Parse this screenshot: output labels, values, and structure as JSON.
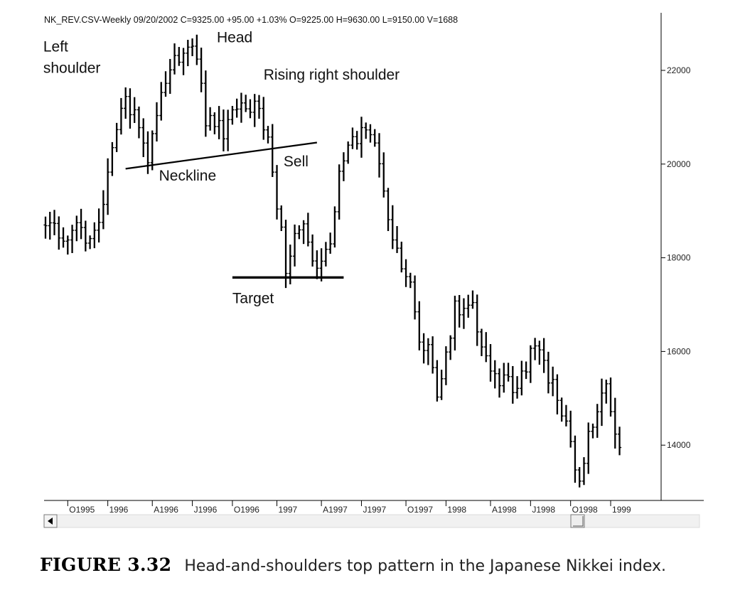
{
  "header": "NK_REV.CSV-Weekly  09/20/2002  C=9325.00  +95.00  +1.03%  O=9225.00  H=9630.00  L=9150.00  V=1688",
  "caption": {
    "number": "FIGURE 3.32",
    "text": "Head-and-shoulders top pattern in the Japanese Nikkei index."
  },
  "chart_data": {
    "type": "bar",
    "subtype": "ohlc-weekly",
    "title": "",
    "xlabel": "",
    "ylabel": "",
    "ylim": [
      12850,
      23000
    ],
    "y_ticks": [
      14000,
      16000,
      18000,
      20000,
      22000
    ],
    "y_axis_side": "right",
    "grid": false,
    "x_ticks": [
      {
        "label": "O1995",
        "week": 5
      },
      {
        "label": "1996",
        "week": 14
      },
      {
        "label": "A1996",
        "week": 24
      },
      {
        "label": "J1996",
        "week": 33
      },
      {
        "label": "O1996",
        "week": 42
      },
      {
        "label": "1997",
        "week": 52
      },
      {
        "label": "A1997",
        "week": 62
      },
      {
        "label": "J1997",
        "week": 71
      },
      {
        "label": "O1997",
        "week": 81
      },
      {
        "label": "1998",
        "week": 90
      },
      {
        "label": "A1998",
        "week": 100
      },
      {
        "label": "J1998",
        "week": 109
      },
      {
        "label": "O1998",
        "week": 118
      },
      {
        "label": "1999",
        "week": 127
      }
    ],
    "series": [
      {
        "close_path": [
          [
            0,
            18700
          ],
          [
            4,
            18500
          ],
          [
            8,
            18600
          ],
          [
            10,
            18400
          ],
          [
            12,
            18700
          ],
          [
            14,
            19900
          ],
          [
            16,
            20600
          ],
          [
            18,
            21400
          ],
          [
            20,
            21000
          ],
          [
            22,
            20600
          ],
          [
            23,
            20100
          ],
          [
            25,
            21200
          ],
          [
            27,
            21900
          ],
          [
            29,
            22300
          ],
          [
            31,
            22200
          ],
          [
            33,
            22500
          ],
          [
            34,
            22300
          ],
          [
            36,
            21000
          ],
          [
            38,
            20900
          ],
          [
            40,
            20600
          ],
          [
            42,
            21100
          ],
          [
            44,
            21300
          ],
          [
            46,
            21200
          ],
          [
            48,
            21300
          ],
          [
            50,
            20500
          ],
          [
            51,
            19800
          ],
          [
            53,
            18600
          ],
          [
            54,
            17600
          ],
          [
            56,
            18400
          ],
          [
            58,
            18600
          ],
          [
            60,
            18100
          ],
          [
            62,
            17800
          ],
          [
            64,
            18300
          ],
          [
            66,
            19900
          ],
          [
            68,
            20300
          ],
          [
            70,
            20600
          ],
          [
            72,
            20700
          ],
          [
            74,
            20400
          ],
          [
            76,
            19400
          ],
          [
            78,
            18300
          ],
          [
            80,
            17800
          ],
          [
            82,
            17300
          ],
          [
            84,
            16100
          ],
          [
            86,
            16300
          ],
          [
            88,
            15100
          ],
          [
            90,
            15900
          ],
          [
            92,
            17000
          ],
          [
            94,
            16900
          ],
          [
            96,
            17000
          ],
          [
            98,
            16200
          ],
          [
            100,
            15500
          ],
          [
            102,
            15300
          ],
          [
            104,
            15400
          ],
          [
            106,
            15100
          ],
          [
            108,
            15700
          ],
          [
            110,
            16300
          ],
          [
            112,
            15700
          ],
          [
            114,
            15300
          ],
          [
            116,
            14700
          ],
          [
            118,
            14000
          ],
          [
            120,
            13300
          ],
          [
            122,
            14300
          ],
          [
            124,
            14700
          ],
          [
            126,
            15200
          ],
          [
            128,
            14200
          ],
          [
            129,
            14000
          ]
        ]
      }
    ],
    "annotations": [
      {
        "text": "Left",
        "week": -0.5,
        "value": 22400
      },
      {
        "text": "shoulder",
        "week": -0.5,
        "value": 21950
      },
      {
        "text": "Head",
        "week": 38.5,
        "value": 22600
      },
      {
        "text": "Rising right shoulder",
        "week": 49,
        "value": 21800
      },
      {
        "text": "Neckline",
        "week": 25.5,
        "value": 19650
      },
      {
        "text": "Sell",
        "week": 53.5,
        "value": 19950
      },
      {
        "text": "Target",
        "week": 42,
        "value": 17030
      }
    ],
    "lines": [
      {
        "name": "Neckline",
        "from": {
          "week": 18,
          "value": 19900
        },
        "to": {
          "week": 61,
          "value": 20460
        }
      },
      {
        "name": "Target",
        "from": {
          "week": 42,
          "value": 17580
        },
        "to": {
          "week": 67,
          "value": 17580
        }
      }
    ]
  }
}
